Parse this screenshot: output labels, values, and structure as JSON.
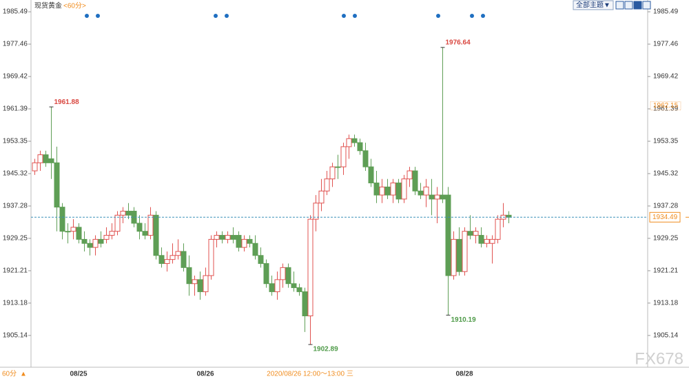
{
  "chart_data": {
    "type": "candlestick",
    "title": "现货黄金",
    "period": "<60分>",
    "theme_button": "全部主题▼",
    "crosshair_label": "2020/08/26 12:00～13:00 三",
    "bottom_period": "60分",
    "watermark": "FX678",
    "categories": [
      null,
      null,
      null,
      null,
      null,
      null,
      null,
      null,
      "08/25",
      null,
      null,
      null,
      null,
      null,
      null,
      null,
      null,
      null,
      null,
      null,
      null,
      null,
      null,
      null,
      null,
      null,
      null,
      null,
      null,
      null,
      null,
      "08/26",
      null,
      null,
      null,
      null,
      null,
      null,
      null,
      null,
      null,
      null,
      null,
      null,
      null,
      null,
      null,
      null,
      null,
      null,
      null,
      null,
      null,
      null,
      null,
      null,
      null,
      null,
      null,
      null,
      null,
      null,
      null,
      null,
      null,
      null,
      null,
      null,
      null,
      null,
      null,
      null,
      null,
      null,
      null,
      null,
      null,
      null,
      "08/28",
      null,
      null,
      null,
      null,
      null,
      null,
      null,
      null
    ],
    "series": {
      "up_color": "#e0514f",
      "down_color": "#5e9e55",
      "open": [
        1946,
        1948,
        1950,
        1949,
        1948,
        1937,
        1931,
        1931,
        1932,
        1929,
        1928,
        1927,
        1929,
        1929,
        1930,
        1931,
        1935,
        1936,
        1936,
        1933,
        1931,
        1930,
        1935,
        1925,
        1923,
        1924,
        1925,
        1926,
        1922,
        1918,
        1919,
        1916,
        1920,
        1929,
        1930,
        1929,
        1930,
        1930,
        1927,
        1929,
        1928,
        1925,
        1923,
        1918,
        1916,
        1919,
        1922,
        1918,
        1917,
        1916,
        1910,
        1934,
        1938,
        1941,
        1944,
        1947,
        1947,
        1952,
        1954,
        1953,
        1951,
        1947,
        1943,
        1940,
        1942,
        1940,
        1943,
        1939,
        1944,
        1946,
        1941,
        1940,
        1940,
        1939,
        1940,
        1940,
        1920,
        1929,
        1921,
        1931,
        1930,
        1930,
        1928,
        1928,
        1929,
        1934,
        1935
      ],
      "high": [
        1949,
        1951,
        1951,
        1961.88,
        1952,
        1938,
        1933,
        1934,
        1933,
        1931,
        1929,
        1930,
        1931,
        1932,
        1933,
        1936,
        1937,
        1938,
        1937,
        1935,
        1933,
        1937,
        1936,
        1927,
        1926,
        1928,
        1929,
        1928,
        1925,
        1920,
        1921,
        1922,
        1930,
        1931,
        1931,
        1931,
        1932,
        1931,
        1930,
        1930,
        1930,
        1927,
        1924,
        1920,
        1921,
        1923,
        1923,
        1921,
        1918,
        1917,
        1935,
        1940,
        1944,
        1946,
        1948,
        1950,
        1953,
        1955,
        1955,
        1954,
        1953,
        1949,
        1946,
        1944,
        1944,
        1944,
        1944,
        1945,
        1947,
        1947,
        1943,
        1944,
        1944,
        1942,
        1976.64,
        1942,
        1931,
        1932,
        1932,
        1935,
        1932,
        1932,
        1930,
        1930,
        1935,
        1938,
        1936
      ],
      "low": [
        1945,
        1946,
        1947,
        1944,
        1931,
        1929,
        1928,
        1929,
        1928,
        1926,
        1925,
        1925,
        1927,
        1928,
        1929,
        1930,
        1933,
        1934,
        1932,
        1929,
        1929,
        1929,
        1924,
        1922,
        1921,
        1923,
        1924,
        1921,
        1915,
        1915,
        1914,
        1915,
        1919,
        1927,
        1928,
        1928,
        1928,
        1926,
        1926,
        1927,
        1924,
        1922,
        1917,
        1915,
        1914,
        1917,
        1917,
        1916,
        1915,
        1906,
        1902.89,
        1931,
        1936,
        1940,
        1942,
        1944,
        1945,
        1949,
        1952,
        1950,
        1946,
        1942,
        1938,
        1938,
        1939,
        1938,
        1938,
        1938,
        1942,
        1940,
        1939,
        1937,
        1935,
        1933,
        1938,
        1910.19,
        1919,
        1920,
        1920,
        1929,
        1928,
        1927,
        1927,
        1923,
        1928,
        1932,
        1933
      ],
      "close": [
        1948,
        1950,
        1948,
        1948,
        1937,
        1931,
        1931,
        1932,
        1929,
        1928,
        1927,
        1929,
        1928,
        1930,
        1931,
        1935,
        1936,
        1935,
        1933,
        1931,
        1930,
        1935,
        1925,
        1923,
        1924,
        1925,
        1926,
        1922,
        1918,
        1919,
        1916,
        1920,
        1929,
        1930,
        1929,
        1930,
        1929,
        1927,
        1929,
        1928,
        1925,
        1923,
        1918,
        1916,
        1919,
        1922,
        1918,
        1917,
        1916,
        1910,
        1934,
        1938,
        1941,
        1944,
        1947,
        1947,
        1952,
        1954,
        1953,
        1951,
        1947,
        1943,
        1940,
        1942,
        1940,
        1943,
        1939,
        1944,
        1946,
        1941,
        1940,
        1942,
        1939,
        1940,
        1939,
        1920,
        1929,
        1921,
        1931,
        1930,
        1931,
        1928,
        1929,
        1929,
        1934,
        1935,
        1934.49
      ]
    },
    "price_marker": 1962.15,
    "ylim": [
      1897.6,
      1987.9
    ],
    "yticks": [
      1985.49,
      1977.46,
      1969.42,
      1961.39,
      1953.35,
      1945.32,
      1937.28,
      1929.25,
      1921.21,
      1913.18,
      1905.14
    ]
  }
}
